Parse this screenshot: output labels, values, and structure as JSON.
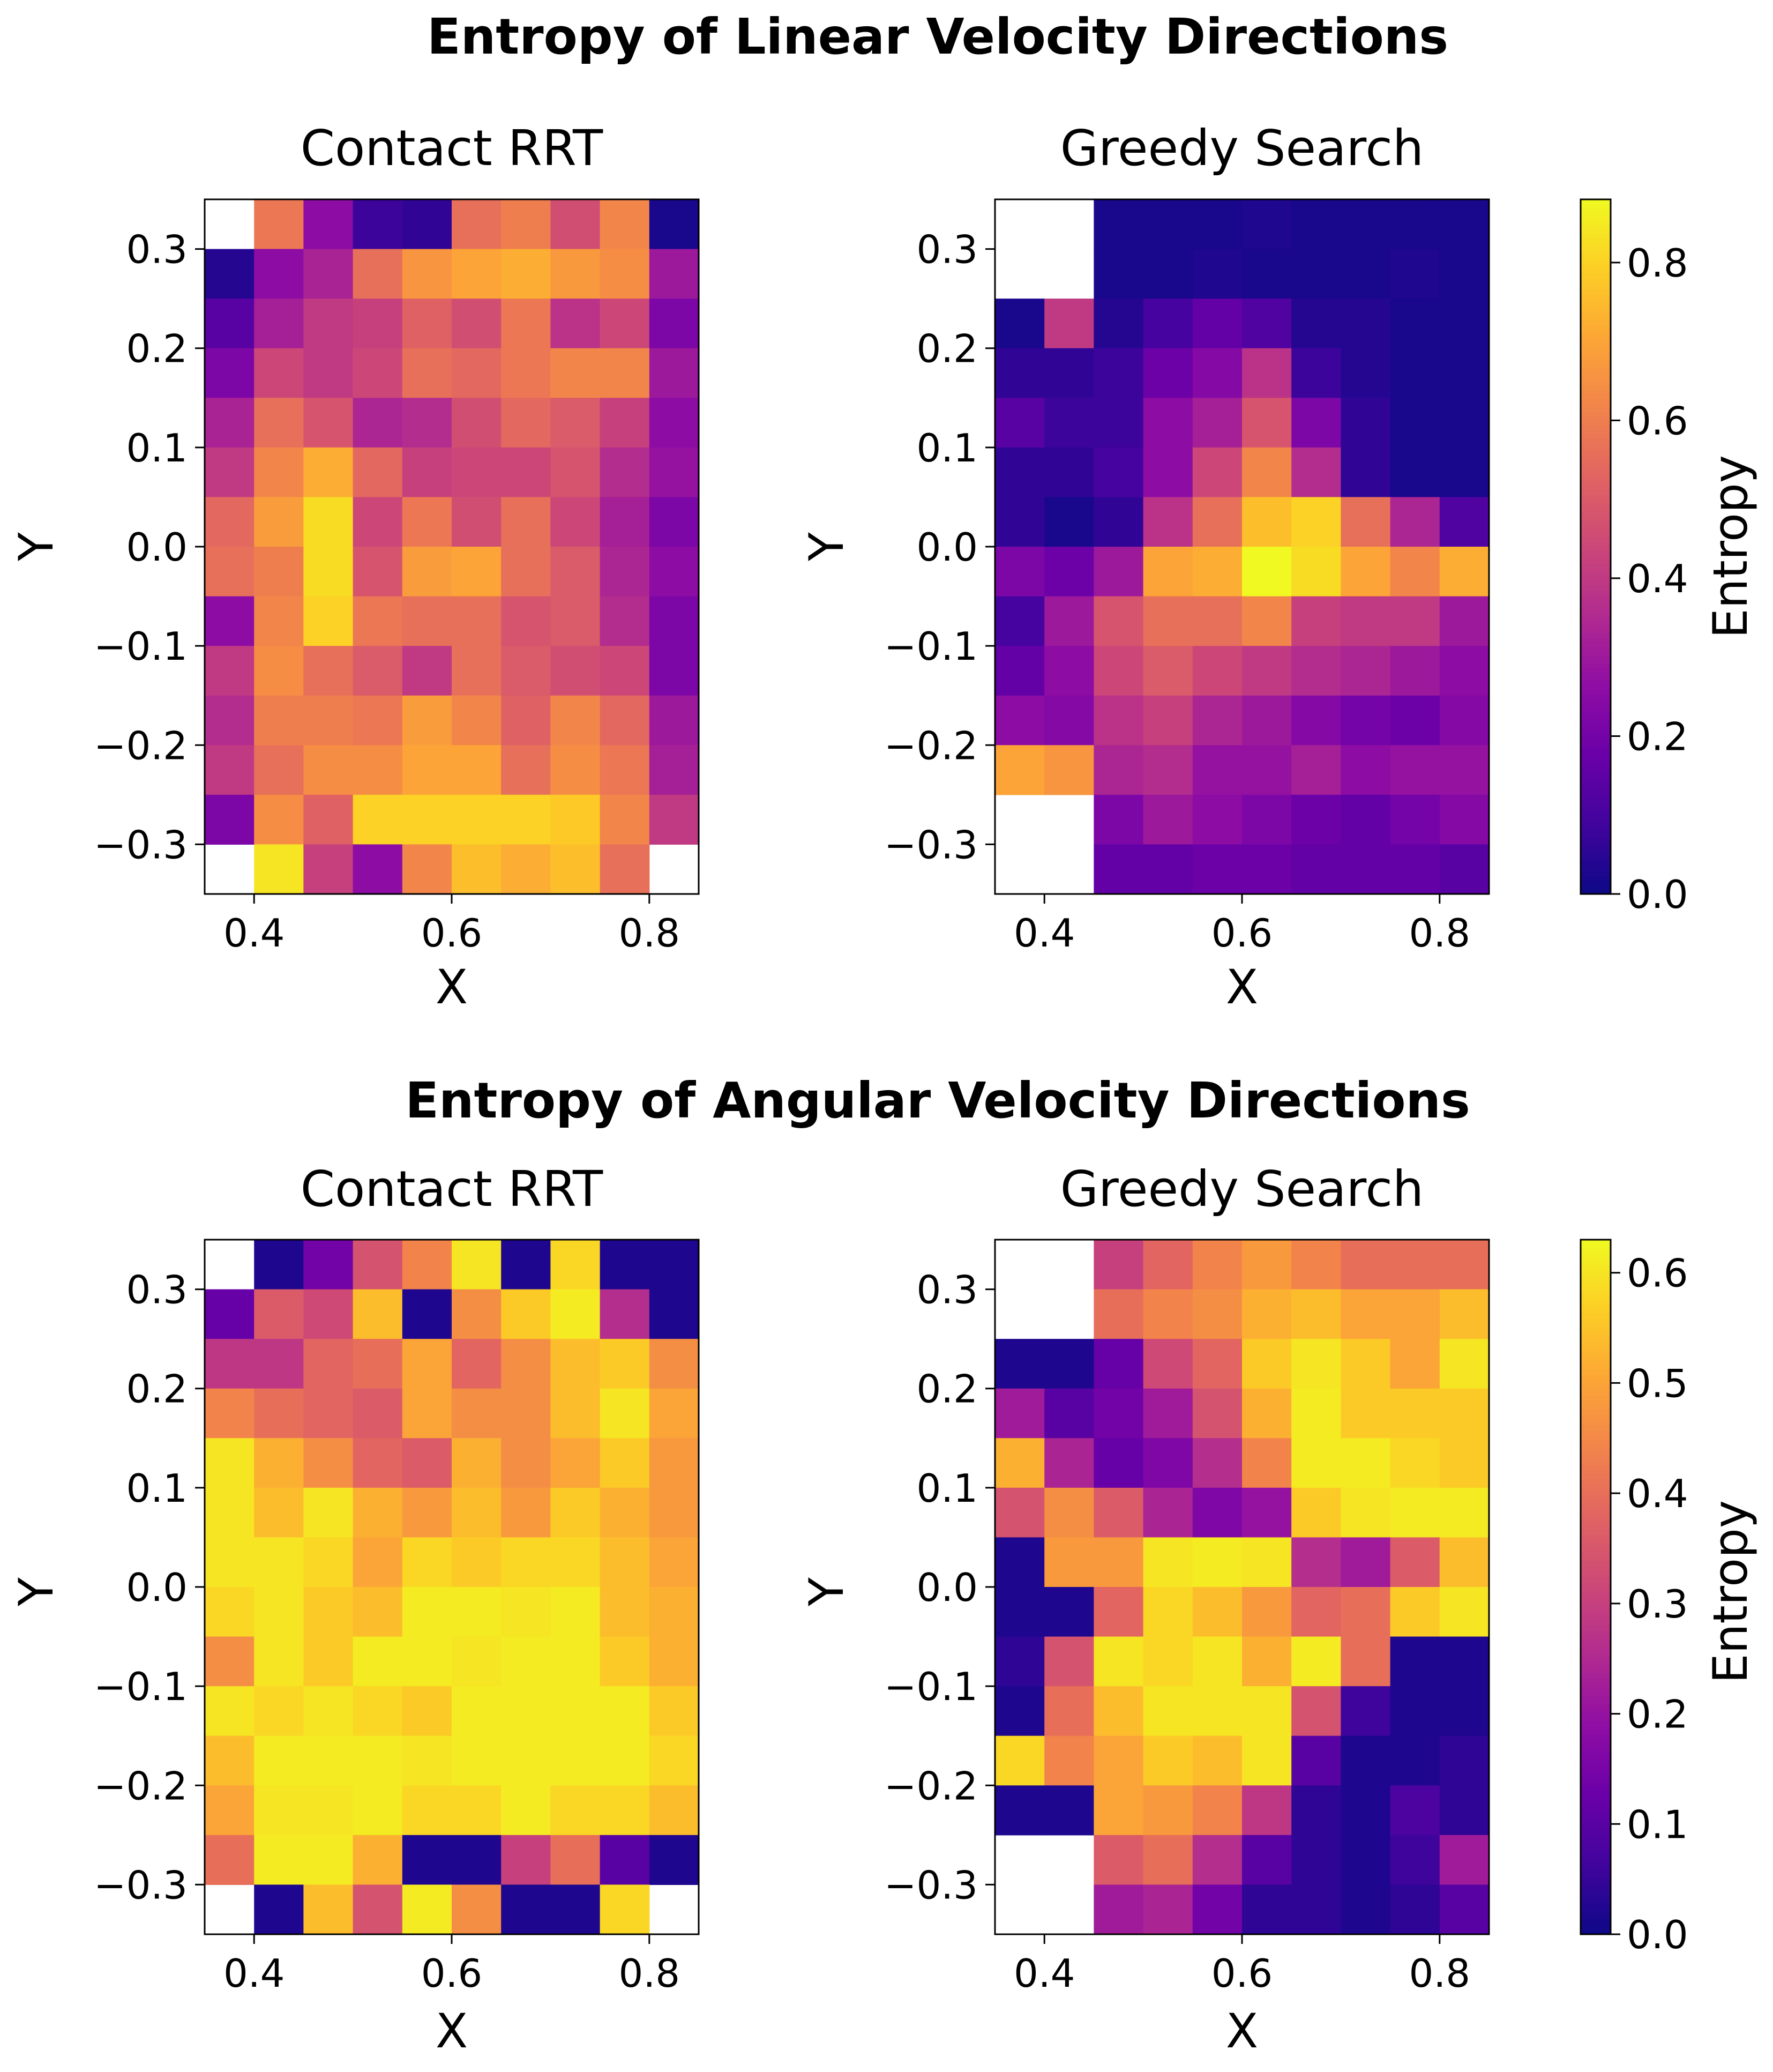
{
  "colormap": "plasma",
  "chart_data": [
    {
      "type": "heatmap",
      "title": "Entropy of Linear Velocity Directions",
      "colorbar": {
        "label": "Entropy",
        "vmin": 0.0,
        "vmax": 0.88,
        "ticks": [
          "0.0",
          "0.2",
          "0.4",
          "0.6",
          "0.8"
        ],
        "tick_values": [
          0.0,
          0.2,
          0.4,
          0.6,
          0.8
        ]
      },
      "panels": [
        {
          "title": "Contact RRT",
          "xlabel": "X",
          "ylabel": "Y",
          "xlim": [
            0.35,
            0.85
          ],
          "ylim": [
            -0.35,
            0.35
          ],
          "xticks": [
            "0.4",
            "0.6",
            "0.8"
          ],
          "xtick_values": [
            0.4,
            0.6,
            0.8
          ],
          "yticks": [
            "0.3",
            "0.2",
            "0.1",
            "0.0",
            "−0.1",
            "−0.2",
            "−0.3"
          ],
          "ytick_values": [
            0.3,
            0.2,
            0.1,
            0.0,
            -0.1,
            -0.2,
            -0.3
          ],
          "rows_top_to_bottom": [
            [
              null,
              0.58,
              0.26,
              0.08,
              0.06,
              0.56,
              0.6,
              0.46,
              0.62,
              0.02
            ],
            [
              0.04,
              0.26,
              0.33,
              0.56,
              0.66,
              0.7,
              0.72,
              0.67,
              0.64,
              0.3
            ],
            [
              0.14,
              0.32,
              0.4,
              0.42,
              0.52,
              0.46,
              0.58,
              0.38,
              0.44,
              0.22
            ],
            [
              0.22,
              0.44,
              0.4,
              0.44,
              0.56,
              0.54,
              0.58,
              0.62,
              0.62,
              0.3
            ],
            [
              0.33,
              0.56,
              0.48,
              0.34,
              0.36,
              0.46,
              0.54,
              0.5,
              0.42,
              0.26
            ],
            [
              0.4,
              0.62,
              0.72,
              0.54,
              0.42,
              0.44,
              0.44,
              0.48,
              0.36,
              0.28
            ],
            [
              0.54,
              0.68,
              0.82,
              0.44,
              0.58,
              0.46,
              0.56,
              0.44,
              0.32,
              0.22
            ],
            [
              0.56,
              0.6,
              0.82,
              0.48,
              0.68,
              0.7,
              0.56,
              0.5,
              0.34,
              0.26
            ],
            [
              0.26,
              0.62,
              0.8,
              0.58,
              0.56,
              0.56,
              0.48,
              0.5,
              0.36,
              0.22
            ],
            [
              0.4,
              0.64,
              0.56,
              0.5,
              0.4,
              0.56,
              0.5,
              0.46,
              0.44,
              0.22
            ],
            [
              0.36,
              0.6,
              0.6,
              0.58,
              0.68,
              0.62,
              0.52,
              0.62,
              0.54,
              0.3
            ],
            [
              0.4,
              0.56,
              0.64,
              0.64,
              0.7,
              0.7,
              0.56,
              0.64,
              0.58,
              0.32
            ],
            [
              0.22,
              0.64,
              0.52,
              0.8,
              0.8,
              0.8,
              0.8,
              0.78,
              0.62,
              0.4
            ],
            [
              null,
              0.84,
              0.42,
              0.26,
              0.62,
              0.76,
              0.72,
              0.76,
              0.56,
              null
            ]
          ]
        },
        {
          "title": "Greedy Search",
          "xlabel": "X",
          "ylabel": "Y",
          "xlim": [
            0.35,
            0.85
          ],
          "ylim": [
            -0.35,
            0.35
          ],
          "xticks": [
            "0.4",
            "0.6",
            "0.8"
          ],
          "xtick_values": [
            0.4,
            0.6,
            0.8
          ],
          "yticks": [
            "0.3",
            "0.2",
            "0.1",
            "0.0",
            "−0.1",
            "−0.2",
            "−0.3"
          ],
          "ytick_values": [
            0.3,
            0.2,
            0.1,
            0.0,
            -0.1,
            -0.2,
            -0.3
          ],
          "rows_top_to_bottom": [
            [
              null,
              null,
              0.02,
              0.02,
              0.02,
              0.03,
              0.02,
              0.02,
              0.02,
              0.02
            ],
            [
              null,
              null,
              0.02,
              0.02,
              0.03,
              0.02,
              0.02,
              0.02,
              0.03,
              0.02
            ],
            [
              0.02,
              0.4,
              0.04,
              0.1,
              0.16,
              0.12,
              0.04,
              0.04,
              0.02,
              0.02
            ],
            [
              0.06,
              0.06,
              0.08,
              0.18,
              0.24,
              0.38,
              0.08,
              0.04,
              0.02,
              0.02
            ],
            [
              0.14,
              0.08,
              0.08,
              0.26,
              0.32,
              0.48,
              0.22,
              0.06,
              0.02,
              0.02
            ],
            [
              0.06,
              0.06,
              0.1,
              0.26,
              0.44,
              0.62,
              0.36,
              0.06,
              0.02,
              0.02
            ],
            [
              0.06,
              0.02,
              0.06,
              0.38,
              0.56,
              0.76,
              0.8,
              0.56,
              0.34,
              0.12
            ],
            [
              0.22,
              0.18,
              0.3,
              0.7,
              0.72,
              0.88,
              0.82,
              0.7,
              0.62,
              0.72
            ],
            [
              0.1,
              0.3,
              0.48,
              0.56,
              0.56,
              0.62,
              0.42,
              0.4,
              0.4,
              0.3
            ],
            [
              0.16,
              0.26,
              0.44,
              0.5,
              0.44,
              0.4,
              0.36,
              0.34,
              0.3,
              0.26
            ],
            [
              0.26,
              0.24,
              0.38,
              0.42,
              0.34,
              0.3,
              0.24,
              0.2,
              0.18,
              0.24
            ],
            [
              0.7,
              0.66,
              0.34,
              0.36,
              0.28,
              0.28,
              0.32,
              0.26,
              0.28,
              0.28
            ],
            [
              null,
              null,
              0.22,
              0.3,
              0.26,
              0.22,
              0.18,
              0.16,
              0.2,
              0.24
            ],
            [
              null,
              null,
              0.16,
              0.16,
              0.18,
              0.18,
              0.16,
              0.16,
              0.16,
              0.14
            ]
          ]
        }
      ]
    },
    {
      "type": "heatmap",
      "title": "Entropy of Angular Velocity Directions",
      "colorbar": {
        "label": "Entropy",
        "vmin": 0.0,
        "vmax": 0.63,
        "ticks": [
          "0.0",
          "0.1",
          "0.2",
          "0.3",
          "0.4",
          "0.5",
          "0.6"
        ],
        "tick_values": [
          0.0,
          0.1,
          0.2,
          0.3,
          0.4,
          0.5,
          0.6
        ]
      },
      "panels": [
        {
          "title": "Contact RRT",
          "xlabel": "X",
          "ylabel": "Y",
          "xlim": [
            0.35,
            0.85
          ],
          "ylim": [
            -0.35,
            0.35
          ],
          "xticks": [
            "0.4",
            "0.6",
            "0.8"
          ],
          "xtick_values": [
            0.4,
            0.6,
            0.8
          ],
          "yticks": [
            "0.3",
            "0.2",
            "0.1",
            "0.0",
            "−0.1",
            "−0.2",
            "−0.3"
          ],
          "ytick_values": [
            0.3,
            0.2,
            0.1,
            0.0,
            -0.1,
            -0.2,
            -0.3
          ],
          "rows_top_to_bottom": [
            [
              null,
              0.02,
              0.14,
              0.34,
              0.44,
              0.6,
              0.02,
              0.58,
              0.02,
              0.02
            ],
            [
              0.12,
              0.36,
              0.32,
              0.54,
              0.02,
              0.46,
              0.56,
              0.61,
              0.26,
              0.02
            ],
            [
              0.28,
              0.28,
              0.38,
              0.4,
              0.5,
              0.38,
              0.46,
              0.54,
              0.56,
              0.46
            ],
            [
              0.44,
              0.4,
              0.38,
              0.36,
              0.5,
              0.46,
              0.46,
              0.54,
              0.6,
              0.5
            ],
            [
              0.6,
              0.52,
              0.46,
              0.38,
              0.36,
              0.52,
              0.46,
              0.5,
              0.56,
              0.48
            ],
            [
              0.6,
              0.54,
              0.6,
              0.52,
              0.48,
              0.54,
              0.48,
              0.56,
              0.52,
              0.48
            ],
            [
              0.6,
              0.6,
              0.58,
              0.5,
              0.58,
              0.56,
              0.58,
              0.58,
              0.54,
              0.5
            ],
            [
              0.58,
              0.6,
              0.56,
              0.54,
              0.61,
              0.61,
              0.6,
              0.61,
              0.54,
              0.52
            ],
            [
              0.46,
              0.6,
              0.56,
              0.61,
              0.61,
              0.6,
              0.61,
              0.61,
              0.56,
              0.52
            ],
            [
              0.6,
              0.58,
              0.6,
              0.58,
              0.56,
              0.61,
              0.61,
              0.61,
              0.61,
              0.56
            ],
            [
              0.54,
              0.61,
              0.61,
              0.61,
              0.6,
              0.61,
              0.61,
              0.61,
              0.61,
              0.58
            ],
            [
              0.5,
              0.6,
              0.6,
              0.61,
              0.58,
              0.58,
              0.61,
              0.58,
              0.58,
              0.54
            ],
            [
              0.4,
              0.61,
              0.61,
              0.52,
              0.02,
              0.02,
              0.3,
              0.4,
              0.1,
              0.02
            ],
            [
              null,
              0.02,
              0.54,
              0.34,
              0.61,
              0.46,
              0.02,
              0.02,
              0.58,
              null
            ]
          ]
        },
        {
          "title": "Greedy Search",
          "xlabel": "X",
          "ylabel": "Y",
          "xlim": [
            0.35,
            0.85
          ],
          "ylim": [
            -0.35,
            0.35
          ],
          "xticks": [
            "0.4",
            "0.6",
            "0.8"
          ],
          "xtick_values": [
            0.4,
            0.6,
            0.8
          ],
          "yticks": [
            "0.3",
            "0.2",
            "0.1",
            "0.0",
            "−0.1",
            "−0.2",
            "−0.3"
          ],
          "ytick_values": [
            0.3,
            0.2,
            0.1,
            0.0,
            -0.1,
            -0.2,
            -0.3
          ],
          "rows_top_to_bottom": [
            [
              null,
              null,
              0.3,
              0.38,
              0.44,
              0.48,
              0.44,
              0.4,
              0.4,
              0.4
            ],
            [
              null,
              null,
              0.4,
              0.44,
              0.46,
              0.52,
              0.54,
              0.5,
              0.5,
              0.54
            ],
            [
              0.02,
              0.02,
              0.12,
              0.32,
              0.38,
              0.56,
              0.6,
              0.56,
              0.5,
              0.6
            ],
            [
              0.22,
              0.1,
              0.14,
              0.22,
              0.34,
              0.52,
              0.61,
              0.56,
              0.56,
              0.56
            ],
            [
              0.52,
              0.24,
              0.12,
              0.16,
              0.26,
              0.44,
              0.61,
              0.61,
              0.58,
              0.56
            ],
            [
              0.34,
              0.46,
              0.36,
              0.24,
              0.16,
              0.2,
              0.56,
              0.6,
              0.61,
              0.61
            ],
            [
              0.02,
              0.48,
              0.48,
              0.6,
              0.61,
              0.6,
              0.26,
              0.22,
              0.36,
              0.54
            ],
            [
              0.02,
              0.02,
              0.38,
              0.58,
              0.54,
              0.48,
              0.38,
              0.4,
              0.56,
              0.6
            ],
            [
              0.04,
              0.34,
              0.6,
              0.58,
              0.6,
              0.52,
              0.61,
              0.4,
              0.02,
              0.02
            ],
            [
              0.02,
              0.4,
              0.54,
              0.6,
              0.6,
              0.6,
              0.34,
              0.06,
              0.02,
              0.02
            ],
            [
              0.58,
              0.44,
              0.5,
              0.56,
              0.54,
              0.6,
              0.1,
              0.02,
              0.02,
              0.04
            ],
            [
              0.02,
              0.02,
              0.5,
              0.48,
              0.44,
              0.28,
              0.04,
              0.02,
              0.08,
              0.04
            ],
            [
              null,
              null,
              0.36,
              0.4,
              0.26,
              0.1,
              0.04,
              0.02,
              0.06,
              0.22
            ],
            [
              null,
              null,
              0.22,
              0.24,
              0.14,
              0.04,
              0.04,
              0.02,
              0.04,
              0.1
            ]
          ]
        }
      ]
    }
  ]
}
